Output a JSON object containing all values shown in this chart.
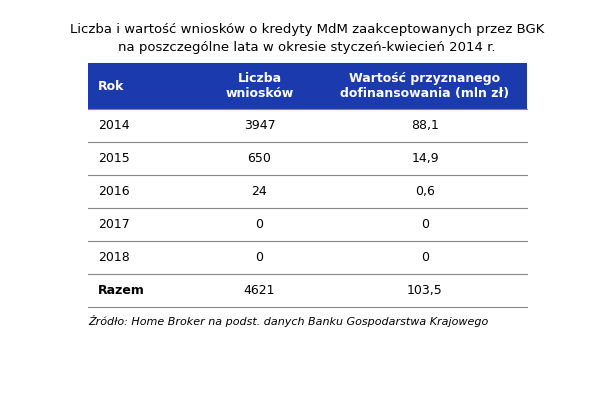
{
  "title_line1": "Liczba i wartość wniosków o kredyty MdM zaakceptowanych przez BGK",
  "title_line2": "na poszczególne lata w okresie styczeń-kwiecień 2014 r.",
  "header_col1": "Rok",
  "header_col2": "Liczba\nwniosków",
  "header_col3": "Wartość przyznanego\ndofinansowania (mln zł)",
  "rows": [
    [
      "2014",
      "3947",
      "88,1"
    ],
    [
      "2015",
      "650",
      "14,9"
    ],
    [
      "2016",
      "24",
      "0,6"
    ],
    [
      "2017",
      "0",
      "0"
    ],
    [
      "2018",
      "0",
      "0"
    ]
  ],
  "total_row": [
    "Razem",
    "4621",
    "103,5"
  ],
  "source": "Źródło: Home Broker na podst. danych Banku Gospodarstwa Krajowego",
  "header_bg": "#1a3aad",
  "header_text_color": "#ffffff",
  "row_text_color": "#000000",
  "line_color": "#888888",
  "bg_color": "#ffffff",
  "figsize": [
    6.15,
    3.98
  ],
  "dpi": 100
}
